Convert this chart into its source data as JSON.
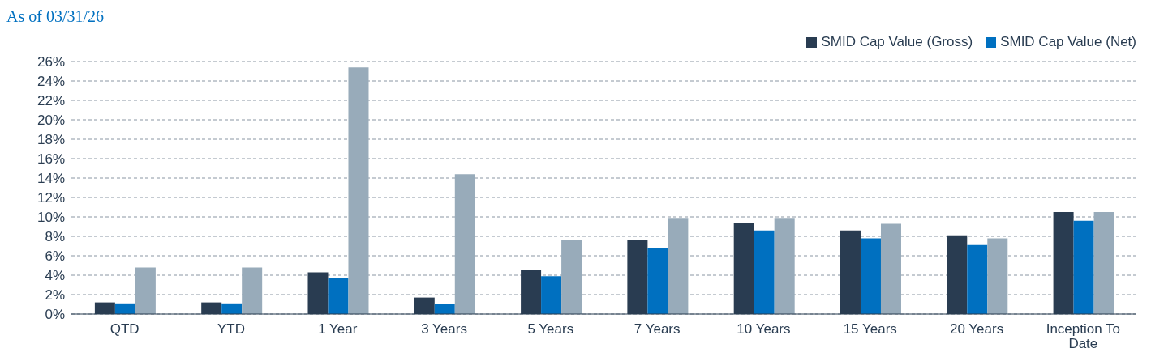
{
  "chart_data": {
    "type": "bar",
    "title": "As of 03/31/26",
    "categories": [
      "QTD",
      "YTD",
      "1 Year",
      "3 Years",
      "5 Years",
      "7 Years",
      "10 Years",
      "15 Years",
      "20 Years",
      "Inception To Date"
    ],
    "series": [
      {
        "name": "SMID Cap Value (Gross)",
        "color": "#293c51",
        "values": [
          1.2,
          1.2,
          4.3,
          1.7,
          4.5,
          7.6,
          9.4,
          8.6,
          8.1,
          10.5
        ]
      },
      {
        "name": "SMID Cap Value (Net)",
        "color": "#0070c0",
        "values": [
          1.1,
          1.1,
          3.7,
          1.0,
          3.9,
          6.8,
          8.6,
          7.8,
          7.1,
          9.6
        ]
      },
      {
        "color": "#98abba",
        "values": [
          4.8,
          4.8,
          25.4,
          14.4,
          7.6,
          9.9,
          9.9,
          9.3,
          7.8,
          10.5
        ]
      }
    ],
    "ylim": [
      0,
      26
    ],
    "yticks": [
      {
        "value": 0,
        "label": "0%"
      },
      {
        "value": 2,
        "label": "2%"
      },
      {
        "value": 4,
        "label": "4%"
      },
      {
        "value": 6,
        "label": "6%"
      },
      {
        "value": 8,
        "label": "8%"
      },
      {
        "value": 10,
        "label": "10%"
      },
      {
        "value": 12,
        "label": "12%"
      },
      {
        "value": 14,
        "label": "14%"
      },
      {
        "value": 16,
        "label": "16%"
      },
      {
        "value": 18,
        "label": "18%"
      },
      {
        "value": 20,
        "label": "20%"
      },
      {
        "value": 22,
        "label": "22%"
      },
      {
        "value": 24,
        "label": "24%"
      },
      {
        "value": 26,
        "label": "26%"
      }
    ],
    "grid": "y",
    "legend": "top right"
  }
}
